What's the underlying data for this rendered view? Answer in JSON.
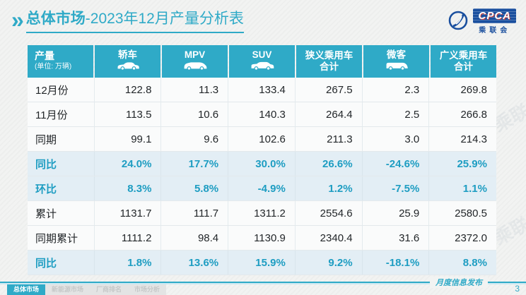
{
  "title": {
    "strong": "总体市场",
    "rest": "-2023年12月产量分析表"
  },
  "logo": {
    "cpca_label": "CPCA",
    "cpca_sub": "乘联会"
  },
  "watermark_text": "CPCA 乘联会",
  "table": {
    "header": {
      "label": "产量",
      "unit": "(单位: 万辆)",
      "columns": [
        {
          "label": "轿车",
          "icon": "sedan-icon"
        },
        {
          "label": "MPV",
          "icon": "mpv-icon"
        },
        {
          "label": "SUV",
          "icon": "suv-icon"
        },
        {
          "label": "狭义乘用车",
          "label2": "合计",
          "icon": null
        },
        {
          "label": "微客",
          "icon": "microvan-icon"
        },
        {
          "label": "广义乘用车",
          "label2": "合计",
          "icon": null
        }
      ]
    },
    "rows": [
      {
        "label": "12月份",
        "highlight": false,
        "values": [
          "122.8",
          "11.3",
          "133.4",
          "267.5",
          "2.3",
          "269.8"
        ]
      },
      {
        "label": "11月份",
        "highlight": false,
        "values": [
          "113.5",
          "10.6",
          "140.3",
          "264.4",
          "2.5",
          "266.8"
        ]
      },
      {
        "label": "同期",
        "highlight": false,
        "values": [
          "99.1",
          "9.6",
          "102.6",
          "211.3",
          "3.0",
          "214.3"
        ]
      },
      {
        "label": "同比",
        "highlight": true,
        "values": [
          "24.0%",
          "17.7%",
          "30.0%",
          "26.6%",
          "-24.6%",
          "25.9%"
        ]
      },
      {
        "label": "环比",
        "highlight": true,
        "values": [
          "8.3%",
          "5.8%",
          "-4.9%",
          "1.2%",
          "-7.5%",
          "1.1%"
        ]
      },
      {
        "label": "累计",
        "highlight": false,
        "values": [
          "1131.7",
          "111.7",
          "1311.2",
          "2554.6",
          "25.9",
          "2580.5"
        ]
      },
      {
        "label": "同期累计",
        "highlight": false,
        "values": [
          "1111.2",
          "98.4",
          "1130.9",
          "2340.4",
          "31.6",
          "2372.0"
        ]
      },
      {
        "label": "同比",
        "highlight": true,
        "values": [
          "1.8%",
          "13.6%",
          "15.9%",
          "9.2%",
          "-18.1%",
          "8.8%"
        ]
      }
    ]
  },
  "footer": {
    "tabs": [
      {
        "label": "总体市场",
        "active": true
      },
      {
        "label": "新能源市场",
        "active": false
      },
      {
        "label": "厂商排名",
        "active": false
      },
      {
        "label": "市场分析",
        "active": false
      }
    ],
    "caption": "月度信息发布",
    "page_number": "3"
  },
  "colors": {
    "accent": "#2faac7",
    "highlight_row_bg": "#e3eef5",
    "highlight_text": "#1e9dc2",
    "logo_blue": "#1a4f9e"
  }
}
